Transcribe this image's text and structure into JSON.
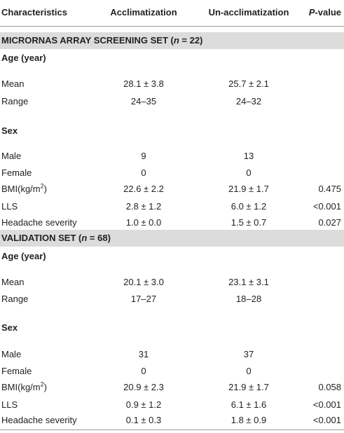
{
  "table": {
    "header": [
      "Characteristics",
      "Acclimatization",
      "Un-acclimatization",
      [
        "P",
        "-value"
      ]
    ],
    "sections": [
      {
        "title": [
          "MICRORNAS ARRAY SCREENING SET (",
          "n",
          " = 22)"
        ],
        "groups": [
          {
            "heading": "Age (year)",
            "rows": [
              [
                "Mean",
                "28.1 ± 3.8",
                "25.7 ± 2.1"
              ],
              [
                "Range",
                "24–35",
                "24–32"
              ]
            ]
          },
          {
            "heading": "Sex",
            "rows": [
              [
                "Male",
                "9",
                "13"
              ],
              [
                "Female",
                "0",
                "0"
              ],
              [
                [
                  "BMI(kg/m",
                  "2",
                  ")"
                ],
                "22.6 ± 2.2",
                "21.9 ± 1.7",
                "0.475"
              ],
              [
                "LLS",
                "2.8 ± 1.2",
                "6.0 ± 1.2",
                "<0.001"
              ],
              [
                "Headache severity",
                "1.0 ± 0.0",
                "1.5 ± 0.7",
                "0.027"
              ]
            ]
          }
        ]
      },
      {
        "title": [
          "VALIDATION SET (",
          "n",
          " = 68)"
        ],
        "groups": [
          {
            "heading": "Age (year)",
            "rows": [
              [
                "Mean",
                "20.1 ± 3.0",
                "23.1 ± 3.1"
              ],
              [
                "Range",
                "17–27",
                "18–28"
              ]
            ]
          },
          {
            "heading": "Sex",
            "rows": [
              [
                "Male",
                "31",
                "37"
              ],
              [
                "Female",
                "0",
                "0"
              ],
              [
                [
                  "BMI(kg/m",
                  "2",
                  ")"
                ],
                "20.9 ± 2.3",
                "21.9 ± 1.7",
                "0.058"
              ],
              [
                "LLS",
                "0.9 ± 1.2",
                "6.1 ± 1.6",
                "<0.001"
              ],
              [
                "Headache severity",
                "0.1 ± 0.3",
                "1.8 ± 0.9",
                "<0.001"
              ]
            ]
          }
        ]
      }
    ]
  }
}
